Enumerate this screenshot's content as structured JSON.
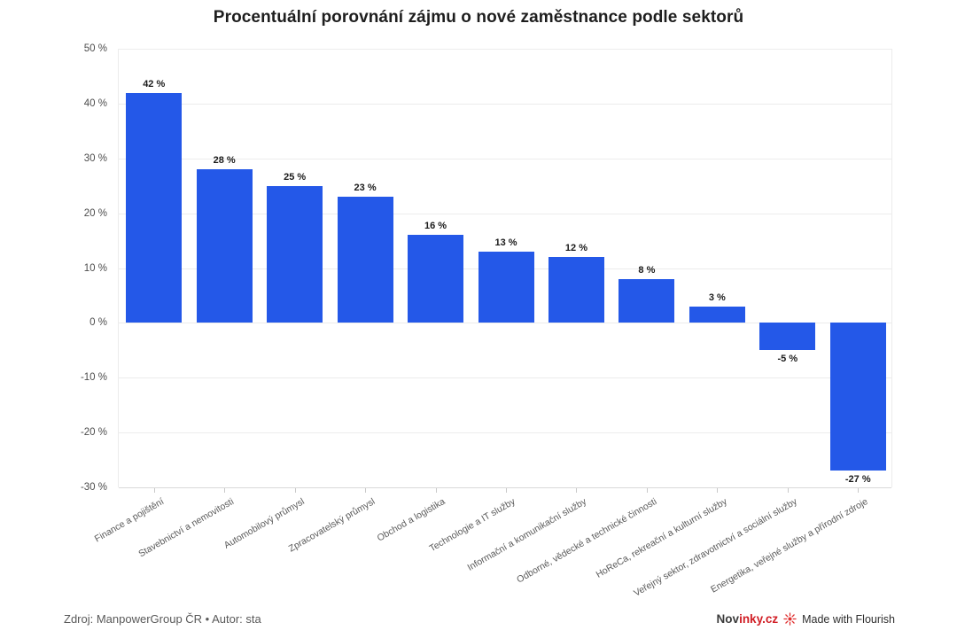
{
  "chart_data": {
    "type": "bar",
    "title": "Procentuální porovnání zájmu o nové zaměstnance podle sektorů",
    "xlabel": "",
    "ylabel": "",
    "categories": [
      "Finance a pojištění",
      "Stavebnictví a nemovitosti",
      "Automobilový průmysl",
      "Zpracovatelský průmysl",
      "Obchod a logistika",
      "Technologie a IT služby",
      "Informační a komunikační služby",
      "Odborné, vědecké a technické činnosti",
      "HoReCa, rekreační a kulturní služby",
      "Veřejný sektor, zdravotnictví a sociální služby",
      "Energetika, veřejné služby a přírodní zdroje"
    ],
    "values": [
      42,
      28,
      25,
      23,
      16,
      13,
      12,
      8,
      3,
      -5,
      -27
    ],
    "value_suffix": " %",
    "ylim": [
      -30,
      50
    ],
    "yticks": [
      50,
      40,
      30,
      20,
      10,
      0,
      -10,
      -20,
      -30
    ],
    "grid": true,
    "legend": "none",
    "bar_color": "#2458e8"
  },
  "colors": {
    "bar": "#2458e8",
    "brand_dark": "#3c3c3c",
    "brand_red": "#d11e25",
    "flourish_red": "#e03131"
  },
  "footer": {
    "source": "Zdroj: ManpowerGroup ČR • Autor: sta",
    "brand_dark_part": "Nov",
    "brand_red_part": "inky.cz",
    "flourish_credit": "Made with Flourish"
  }
}
